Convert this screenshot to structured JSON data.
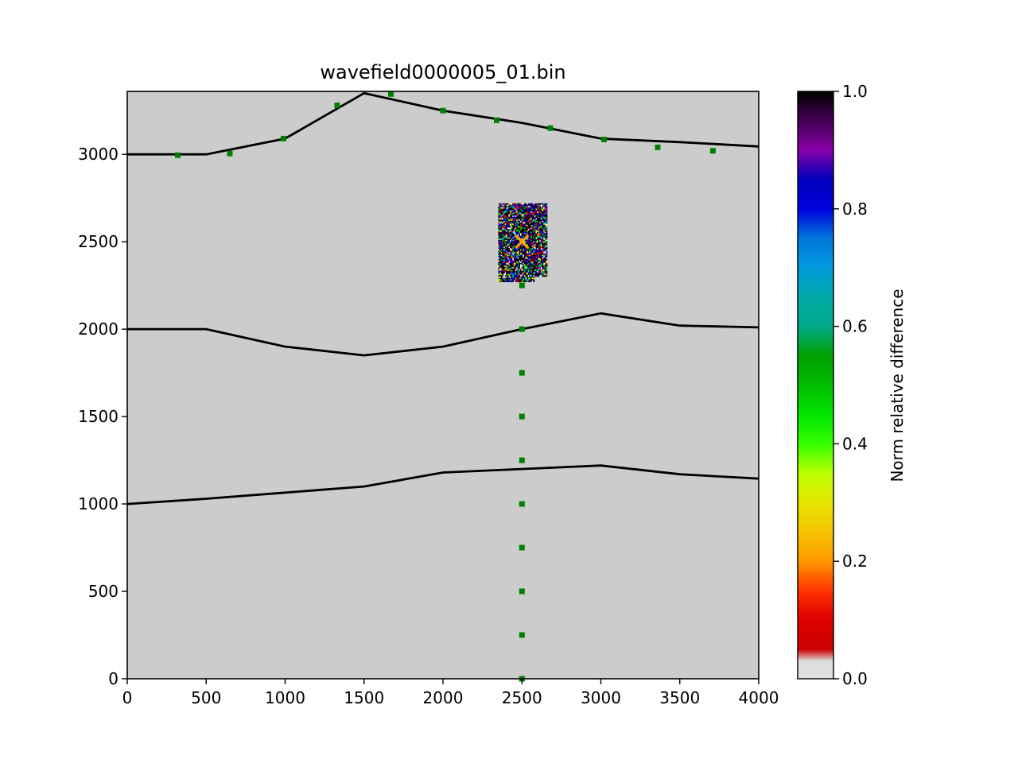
{
  "chart_data": {
    "type": "scatter",
    "title": "wavefield0000005_01.bin",
    "xlabel": "",
    "ylabel": "",
    "xlim": [
      0,
      4000
    ],
    "ylim": [
      0,
      3360
    ],
    "x_ticks": [
      0,
      500,
      1000,
      1500,
      2000,
      2500,
      3000,
      3500,
      4000
    ],
    "y_ticks": [
      0,
      500,
      1000,
      1500,
      2000,
      2500,
      3000
    ],
    "background_color": "#cccccc",
    "grid": false,
    "interfaces": [
      {
        "x": [
          0,
          500,
          1000,
          1500,
          2000,
          2500,
          3000,
          3500,
          4000
        ],
        "y": [
          3000,
          3000,
          3090,
          3350,
          3250,
          3180,
          3090,
          3070,
          3045
        ]
      },
      {
        "x": [
          0,
          500,
          1000,
          1500,
          2000,
          2500,
          3000,
          3500,
          4000
        ],
        "y": [
          2000,
          2000,
          1900,
          1850,
          1900,
          2000,
          2090,
          2020,
          2010
        ]
      },
      {
        "x": [
          0,
          500,
          1000,
          1500,
          2000,
          2500,
          3000,
          3500,
          4000
        ],
        "y": [
          1000,
          1030,
          1065,
          1100,
          1180,
          1200,
          1220,
          1170,
          1145
        ]
      }
    ],
    "receivers": {
      "color": "#008000",
      "x": [
        320,
        650,
        990,
        1330,
        1670,
        2000,
        2340,
        2680,
        3020,
        3360,
        3710,
        2500,
        2500,
        2500,
        2500,
        2500,
        2500,
        2500,
        2500,
        2500,
        2500
      ],
      "y": [
        2995,
        3005,
        3090,
        3280,
        3345,
        3250,
        3195,
        3150,
        3085,
        3040,
        3020,
        2250,
        2000,
        1750,
        1500,
        1250,
        1000,
        750,
        500,
        250,
        0
      ]
    },
    "source": {
      "x": 2500,
      "y": 2500,
      "marker": "x",
      "color": "#ffa500"
    },
    "difference_patch": {
      "x_range": [
        2350,
        2660
      ],
      "y_range": [
        2270,
        2720
      ],
      "value_range": [
        0,
        1
      ]
    },
    "colorbar": {
      "label": "Norm relative difference",
      "ticks": [
        0.0,
        0.2,
        0.4,
        0.6,
        0.8,
        1.0
      ],
      "tick_labels": [
        "0.0",
        "0.2",
        "0.4",
        "0.6",
        "0.8",
        "1.0"
      ],
      "range": [
        0,
        1
      ],
      "colormap": "nipy_spectral"
    }
  }
}
